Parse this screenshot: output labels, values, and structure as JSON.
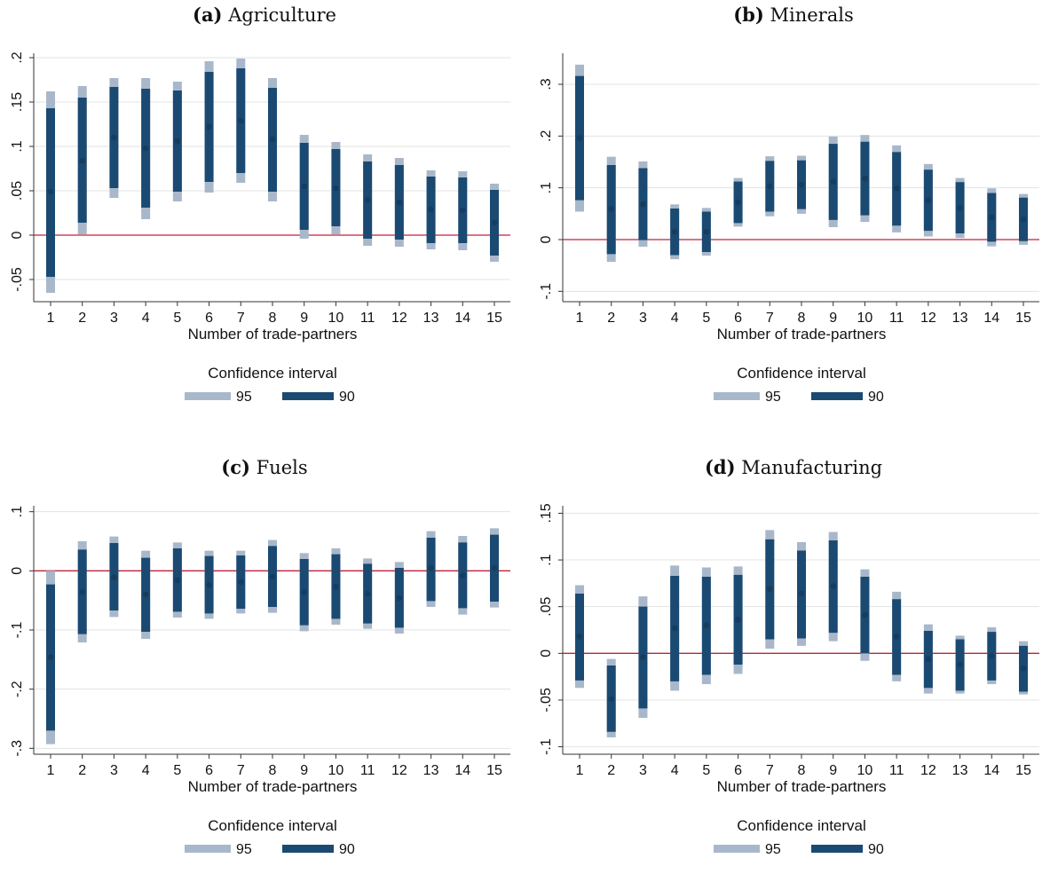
{
  "style": {
    "ci95_color": "#a8b8ca",
    "ci90_color": "#1a4a72",
    "zero_line_color": "#c0203a",
    "grid_color": "#e3e3e3",
    "axis_color": "#333333"
  },
  "legend": {
    "title": "Confidence interval",
    "items": [
      {
        "label": "95",
        "color": "#a8b8ca"
      },
      {
        "label": "90",
        "color": "#1a4a72"
      }
    ]
  },
  "chart_data": [
    {
      "type": "scatter",
      "panel_label": "(a)",
      "title": "Agriculture",
      "xlabel": "Number of trade-partners",
      "ylabel": "",
      "x": [
        1,
        2,
        3,
        4,
        5,
        6,
        7,
        8,
        9,
        10,
        11,
        12,
        13,
        14,
        15
      ],
      "xticklabels": [
        "1",
        "2",
        "3",
        "4",
        "5",
        "6",
        "7",
        "8",
        "9",
        "10",
        "11",
        "12",
        "13",
        "14",
        "15"
      ],
      "ylim": [
        -0.075,
        0.205
      ],
      "yticks": [
        -0.05,
        0,
        0.05,
        0.1,
        0.15,
        0.2
      ],
      "yticklabels": [
        "-.05",
        "0",
        ".05",
        ".1",
        ".15",
        ".2"
      ],
      "grid": true,
      "zero_line": true,
      "series": [
        {
          "name": "estimate",
          "values": [
            0.049,
            0.084,
            0.11,
            0.098,
            0.106,
            0.122,
            0.129,
            0.108,
            0.055,
            0.053,
            0.04,
            0.037,
            0.029,
            0.028,
            0.014
          ]
        },
        {
          "name": "95",
          "lower": [
            -0.065,
            0.001,
            0.042,
            0.018,
            0.038,
            0.048,
            0.059,
            0.038,
            -0.004,
            0.001,
            -0.012,
            -0.013,
            -0.016,
            -0.017,
            -0.03
          ],
          "upper": [
            0.162,
            0.168,
            0.177,
            0.177,
            0.173,
            0.196,
            0.199,
            0.177,
            0.113,
            0.105,
            0.091,
            0.087,
            0.073,
            0.072,
            0.058
          ]
        },
        {
          "name": "90",
          "lower": [
            -0.047,
            0.014,
            0.053,
            0.031,
            0.049,
            0.06,
            0.07,
            0.049,
            0.006,
            0.01,
            -0.004,
            -0.005,
            -0.009,
            -0.009,
            -0.023
          ],
          "upper": [
            0.143,
            0.155,
            0.167,
            0.165,
            0.163,
            0.184,
            0.188,
            0.166,
            0.104,
            0.097,
            0.083,
            0.079,
            0.066,
            0.065,
            0.051
          ]
        }
      ]
    },
    {
      "type": "scatter",
      "panel_label": "(b)",
      "title": "Minerals",
      "xlabel": "Number of trade-partners",
      "ylabel": "",
      "x": [
        1,
        2,
        3,
        4,
        5,
        6,
        7,
        8,
        9,
        10,
        11,
        12,
        13,
        14,
        15
      ],
      "xticklabels": [
        "1",
        "2",
        "3",
        "4",
        "5",
        "6",
        "7",
        "8",
        "9",
        "10",
        "11",
        "12",
        "13",
        "14",
        "15"
      ],
      "ylim": [
        -0.12,
        0.36
      ],
      "yticks": [
        -0.1,
        0,
        0.1,
        0.2,
        0.3
      ],
      "yticklabels": [
        "-.1",
        "0",
        ".1",
        ".2",
        ".3"
      ],
      "grid": true,
      "zero_line": true,
      "series": [
        {
          "name": "estimate",
          "values": [
            0.196,
            0.059,
            0.068,
            0.015,
            0.015,
            0.072,
            0.103,
            0.106,
            0.112,
            0.118,
            0.099,
            0.076,
            0.061,
            0.043,
            0.039
          ]
        },
        {
          "name": "95",
          "lower": [
            0.054,
            -0.043,
            -0.014,
            -0.038,
            -0.031,
            0.025,
            0.045,
            0.05,
            0.024,
            0.034,
            0.014,
            0.006,
            0.003,
            -0.013,
            -0.01
          ],
          "upper": [
            0.338,
            0.16,
            0.151,
            0.068,
            0.061,
            0.119,
            0.161,
            0.162,
            0.199,
            0.202,
            0.182,
            0.146,
            0.119,
            0.099,
            0.088
          ]
        },
        {
          "name": "90",
          "lower": [
            0.076,
            -0.028,
            -0.001,
            -0.03,
            -0.024,
            0.032,
            0.054,
            0.059,
            0.038,
            0.047,
            0.027,
            0.017,
            0.012,
            -0.004,
            -0.003
          ],
          "upper": [
            0.316,
            0.144,
            0.138,
            0.06,
            0.054,
            0.112,
            0.152,
            0.153,
            0.185,
            0.189,
            0.169,
            0.135,
            0.111,
            0.09,
            0.081
          ]
        }
      ]
    },
    {
      "type": "scatter",
      "panel_label": "(c)",
      "title": "Fuels",
      "xlabel": "Number of trade-partners",
      "ylabel": "",
      "x": [
        1,
        2,
        3,
        4,
        5,
        6,
        7,
        8,
        9,
        10,
        11,
        12,
        13,
        14,
        15
      ],
      "xticklabels": [
        "1",
        "2",
        "3",
        "4",
        "5",
        "6",
        "7",
        "8",
        "9",
        "10",
        "11",
        "12",
        "13",
        "14",
        "15"
      ],
      "ylim": [
        -0.31,
        0.11
      ],
      "yticks": [
        -0.3,
        -0.2,
        -0.1,
        0,
        0.1
      ],
      "yticklabels": [
        "-.3",
        "-.2",
        "-.1",
        "0",
        ".1"
      ],
      "grid": true,
      "zero_line": true,
      "series": [
        {
          "name": "estimate",
          "values": [
            -0.146,
            -0.036,
            -0.011,
            -0.04,
            -0.016,
            -0.024,
            -0.019,
            -0.01,
            -0.036,
            -0.027,
            -0.039,
            -0.046,
            0.005,
            -0.008,
            0.005
          ]
        },
        {
          "name": "95",
          "lower": [
            -0.293,
            -0.121,
            -0.078,
            -0.115,
            -0.079,
            -0.081,
            -0.072,
            -0.071,
            -0.102,
            -0.091,
            -0.098,
            -0.106,
            -0.061,
            -0.074,
            -0.062
          ],
          "upper": [
            0.0,
            0.05,
            0.058,
            0.034,
            0.048,
            0.034,
            0.034,
            0.052,
            0.03,
            0.038,
            0.021,
            0.015,
            0.067,
            0.059,
            0.072
          ]
        },
        {
          "name": "90",
          "lower": [
            -0.27,
            -0.107,
            -0.067,
            -0.103,
            -0.069,
            -0.072,
            -0.064,
            -0.061,
            -0.092,
            -0.081,
            -0.089,
            -0.096,
            -0.051,
            -0.063,
            -0.052
          ],
          "upper": [
            -0.023,
            0.036,
            0.047,
            0.022,
            0.038,
            0.025,
            0.026,
            0.042,
            0.02,
            0.028,
            0.012,
            0.005,
            0.056,
            0.048,
            0.061
          ]
        }
      ]
    },
    {
      "type": "scatter",
      "panel_label": "(d)",
      "title": "Manufacturing",
      "xlabel": "Number of trade-partners",
      "ylabel": "",
      "x": [
        1,
        2,
        3,
        4,
        5,
        6,
        7,
        8,
        9,
        10,
        11,
        12,
        13,
        14,
        15
      ],
      "xticklabels": [
        "1",
        "2",
        "3",
        "4",
        "5",
        "6",
        "7",
        "8",
        "9",
        "10",
        "11",
        "12",
        "13",
        "14",
        "15"
      ],
      "ylim": [
        -0.108,
        0.158
      ],
      "yticks": [
        -0.1,
        -0.05,
        0,
        0.05,
        0.1,
        0.15
      ],
      "yticklabels": [
        "-.1",
        "-.05",
        "0",
        ".05",
        ".1",
        ".15"
      ],
      "grid": true,
      "zero_line": true,
      "series": [
        {
          "name": "estimate",
          "values": [
            0.018,
            -0.049,
            -0.004,
            0.027,
            0.03,
            0.036,
            0.069,
            0.064,
            0.072,
            0.041,
            0.018,
            -0.006,
            -0.012,
            -0.003,
            -0.016
          ]
        },
        {
          "name": "95",
          "lower": [
            -0.037,
            -0.09,
            -0.069,
            -0.04,
            -0.033,
            -0.022,
            0.005,
            0.008,
            0.013,
            -0.008,
            -0.03,
            -0.043,
            -0.043,
            -0.033,
            -0.044
          ],
          "upper": [
            0.073,
            -0.006,
            0.061,
            0.094,
            0.092,
            0.093,
            0.132,
            0.119,
            0.13,
            0.09,
            0.066,
            0.031,
            0.019,
            0.028,
            0.013
          ]
        },
        {
          "name": "90",
          "lower": [
            -0.029,
            -0.084,
            -0.059,
            -0.03,
            -0.023,
            -0.012,
            0.015,
            0.016,
            0.022,
            0.0,
            -0.023,
            -0.037,
            -0.04,
            -0.029,
            -0.041
          ],
          "upper": [
            0.064,
            -0.013,
            0.05,
            0.083,
            0.082,
            0.084,
            0.122,
            0.11,
            0.121,
            0.082,
            0.058,
            0.024,
            0.015,
            0.023,
            0.008
          ]
        }
      ]
    }
  ]
}
